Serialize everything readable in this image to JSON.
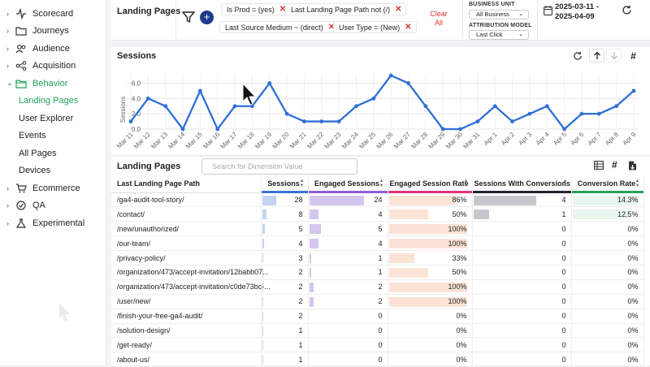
{
  "sidebar": {
    "items": [
      {
        "label": "Scorecard",
        "icon": "activity-icon",
        "name": "sidebar-item-scorecard"
      },
      {
        "label": "Journeys",
        "icon": "folder-icon",
        "name": "sidebar-item-journeys"
      },
      {
        "label": "Audience",
        "icon": "users-icon",
        "name": "sidebar-item-audience"
      },
      {
        "label": "Acquisition",
        "icon": "share-icon",
        "name": "sidebar-item-acquisition"
      },
      {
        "label": "Behavior",
        "icon": "folder-open-icon",
        "name": "sidebar-item-behavior",
        "active": true
      }
    ],
    "behavior_sub": [
      "Landing Pages",
      "User Explorer",
      "Events",
      "All Pages",
      "Devices"
    ],
    "items_after": [
      {
        "label": "Ecommerce",
        "icon": "cart-icon",
        "name": "sidebar-item-ecommerce"
      },
      {
        "label": "QA",
        "icon": "check-circle-icon",
        "name": "sidebar-item-qa"
      },
      {
        "label": "Experimental",
        "icon": "flask-icon",
        "name": "sidebar-item-experimental"
      }
    ]
  },
  "header": {
    "title": "Landing Pages",
    "filters": [
      "Is Prod = (yes)",
      "Last Landing Page Path not (/)",
      "Last Source Medium ~ (direct)",
      "User Type = (New)"
    ],
    "clear_all": "Clear All",
    "business_unit_label": "BUSINESS UNIT",
    "business_unit_value": "All Business",
    "attribution_label": "ATTRIBUTION MODEL",
    "attribution_value": "Last Click",
    "date_start": "2025-03-11 -",
    "date_end": "2025-04-09"
  },
  "sessions_card": {
    "title": "Sessions",
    "y_axis_label": "Sessions"
  },
  "chart_data": {
    "type": "line",
    "ylabel": "Sessions",
    "ylim": [
      0,
      7
    ],
    "yticks": [
      "0.0",
      "2.0",
      "4.0",
      "6.0"
    ],
    "grid": true,
    "color": "#2f6fd6",
    "categories": [
      "Mar 11",
      "Mar 12",
      "Mar 13",
      "Mar 14",
      "Mar 15",
      "Mar 16",
      "Mar 17",
      "Mar 18",
      "Mar 19",
      "Mar 20",
      "Mar 21",
      "Mar 22",
      "Mar 23",
      "Mar 24",
      "Mar 25",
      "Mar 26",
      "Mar 27",
      "Mar 28",
      "Mar 29",
      "Mar 30",
      "Mar 31",
      "Apr 1",
      "Apr 2",
      "Apr 3",
      "Apr 4",
      "Apr 5",
      "Apr 6",
      "Apr 7",
      "Apr 8",
      "Apr 9"
    ],
    "values": [
      1,
      4,
      3,
      0,
      5,
      0,
      3,
      3,
      6,
      2,
      1,
      1,
      1,
      3,
      4,
      7,
      6,
      3,
      0,
      0,
      1,
      3,
      1,
      2,
      3,
      0,
      2,
      2,
      3,
      5
    ]
  },
  "table_card": {
    "title": "Landing Pages",
    "search_placeholder": "Search for Dimension Value",
    "columns": [
      "Last Landing Page Path",
      "Sessions",
      "Engaged Sessions",
      "Engaged Session Rate",
      "Sessions With Conversions",
      "Conversion Rate"
    ],
    "column_colors": [
      "#ffffff",
      "#3b73d9",
      "#8e5fd6",
      "#e0357a",
      "#22252e",
      "#22a35a"
    ],
    "rows": [
      {
        "path": "/ga4-audit-tool-story/",
        "sessions": "28",
        "engaged": "24",
        "rate": "86%",
        "conv": "4",
        "conv_rate": "14.3%",
        "s": 28,
        "e": 24,
        "r": 86,
        "c": 4,
        "cr": 14.3
      },
      {
        "path": "/contact/",
        "sessions": "8",
        "engaged": "4",
        "rate": "50%",
        "conv": "1",
        "conv_rate": "12.5%",
        "s": 8,
        "e": 4,
        "r": 50,
        "c": 1,
        "cr": 12.5
      },
      {
        "path": "/new/unauthorized/",
        "sessions": "5",
        "engaged": "5",
        "rate": "100%",
        "conv": "0",
        "conv_rate": "0%",
        "s": 5,
        "e": 5,
        "r": 100,
        "c": 0,
        "cr": 0
      },
      {
        "path": "/our-team/",
        "sessions": "4",
        "engaged": "4",
        "rate": "100%",
        "conv": "0",
        "conv_rate": "0%",
        "s": 4,
        "e": 4,
        "r": 100,
        "c": 0,
        "cr": 0
      },
      {
        "path": "/privacy-policy/",
        "sessions": "3",
        "engaged": "1",
        "rate": "33%",
        "conv": "0",
        "conv_rate": "0%",
        "s": 3,
        "e": 1,
        "r": 33,
        "c": 0,
        "cr": 0
      },
      {
        "path": "/organization/473/accept-invitation/12babb07...",
        "sessions": "2",
        "engaged": "1",
        "rate": "50%",
        "conv": "0",
        "conv_rate": "0%",
        "s": 2,
        "e": 1,
        "r": 50,
        "c": 0,
        "cr": 0
      },
      {
        "path": "/organization/473/accept-invitation/c0de73bc-...",
        "sessions": "2",
        "engaged": "2",
        "rate": "100%",
        "conv": "0",
        "conv_rate": "0%",
        "s": 2,
        "e": 2,
        "r": 100,
        "c": 0,
        "cr": 0
      },
      {
        "path": "/user/new/",
        "sessions": "2",
        "engaged": "2",
        "rate": "100%",
        "conv": "0",
        "conv_rate": "0%",
        "s": 2,
        "e": 2,
        "r": 100,
        "c": 0,
        "cr": 0
      },
      {
        "path": "/finish-your-free-ga4-audit/",
        "sessions": "2",
        "engaged": "0",
        "rate": "0%",
        "conv": "0",
        "conv_rate": "0%",
        "s": 2,
        "e": 0,
        "r": 0,
        "c": 0,
        "cr": 0
      },
      {
        "path": "/solution-design/",
        "sessions": "1",
        "engaged": "0",
        "rate": "0%",
        "conv": "0",
        "conv_rate": "0%",
        "s": 1,
        "e": 0,
        "r": 0,
        "c": 0,
        "cr": 0
      },
      {
        "path": "/get-ready/",
        "sessions": "1",
        "engaged": "0",
        "rate": "0%",
        "conv": "0",
        "conv_rate": "0%",
        "s": 1,
        "e": 0,
        "r": 0,
        "c": 0,
        "cr": 0
      },
      {
        "path": "/about-us/",
        "sessions": "1",
        "engaged": "0",
        "rate": "0%",
        "conv": "0",
        "conv_rate": "0%",
        "s": 1,
        "e": 0,
        "r": 0,
        "c": 0,
        "cr": 0
      }
    ]
  }
}
